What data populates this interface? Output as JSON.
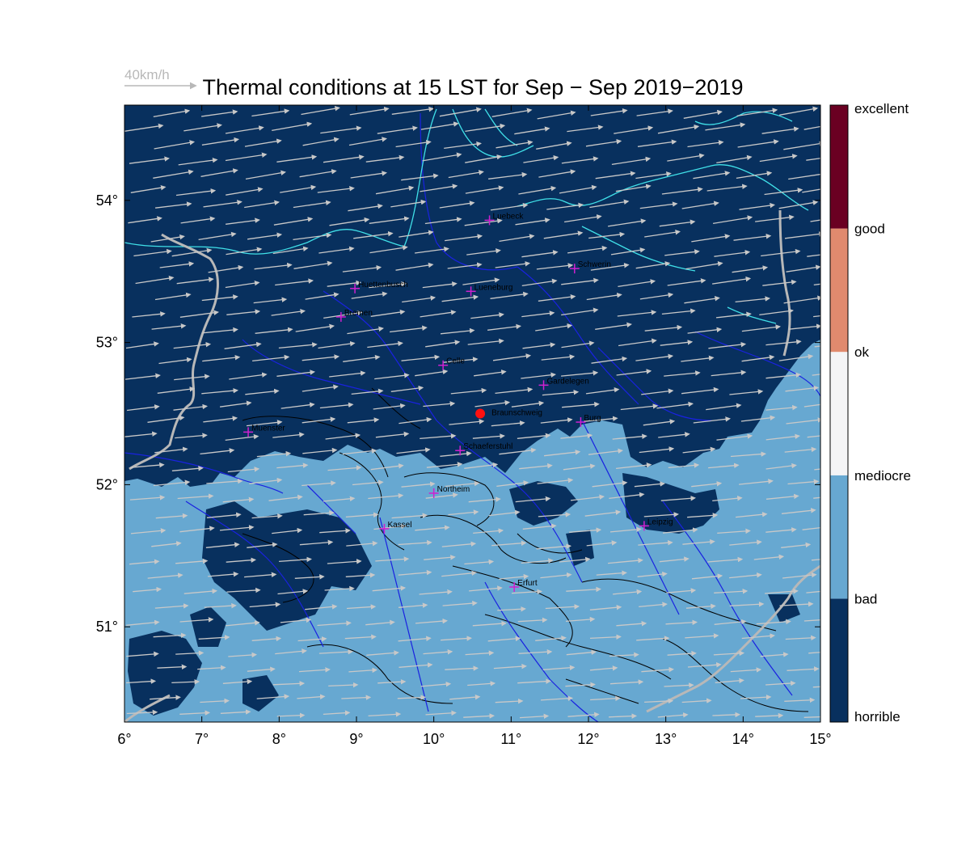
{
  "title": "Thermal conditions at 15 LST for Sep − Sep  2019−2019",
  "wind_reference": {
    "label": "40km/h"
  },
  "axes": {
    "x_ticks": [
      "6°",
      "7°",
      "8°",
      "9°",
      "10°",
      "11°",
      "12°",
      "13°",
      "14°",
      "15°"
    ],
    "y_ticks": [
      "51°",
      "52°",
      "53°",
      "54°"
    ]
  },
  "lon_range": [
    6,
    15
  ],
  "lat_range": [
    50.33,
    54.67
  ],
  "colorbar": {
    "classes": [
      {
        "label": "horrible",
        "color": "#08305e"
      },
      {
        "label": "bad",
        "color": "#67a8d1"
      },
      {
        "label": "mediocre",
        "color": "#f4f4f6"
      },
      {
        "label": "ok",
        "color": "#e18a6e"
      },
      {
        "label": "good",
        "color": "#6a0022"
      }
    ],
    "boundary_labels": [
      "horrible",
      "bad",
      "mediocre",
      "ok",
      "good",
      "excellent"
    ]
  },
  "colors": {
    "horrible": "#08305e",
    "bad": "#67a8d1",
    "coast": "#40e0e8",
    "river": "#1a22e0",
    "border": "#b8b8b8",
    "wind_arrow": "#c8c8c8",
    "city_marker": "#d020d0",
    "home_marker": "#ff1010",
    "terrain_contour": "#000000"
  },
  "home_site": {
    "name": "Braunschweig",
    "lon": 10.6,
    "lat": 52.5
  },
  "cities": [
    {
      "name": "Luebeck",
      "lon": 10.72,
      "lat": 53.86
    },
    {
      "name": "Schwerin",
      "lon": 11.82,
      "lat": 53.52
    },
    {
      "name": "Huettenbusch",
      "lon": 8.98,
      "lat": 53.38
    },
    {
      "name": "Lueneburg",
      "lon": 10.48,
      "lat": 53.36
    },
    {
      "name": "Bremen",
      "lon": 8.8,
      "lat": 53.18
    },
    {
      "name": "Celle",
      "lon": 10.12,
      "lat": 52.84
    },
    {
      "name": "Gardelegen",
      "lon": 11.42,
      "lat": 52.7
    },
    {
      "name": "Burg",
      "lon": 11.9,
      "lat": 52.44
    },
    {
      "name": "Muenster",
      "lon": 7.6,
      "lat": 52.37
    },
    {
      "name": "Schaeferstuhl",
      "lon": 10.34,
      "lat": 52.24
    },
    {
      "name": "Northeim",
      "lon": 10.0,
      "lat": 51.94
    },
    {
      "name": "Kassel",
      "lon": 9.36,
      "lat": 51.69
    },
    {
      "name": "Leipzig",
      "lon": 12.72,
      "lat": 51.71
    },
    {
      "name": "Erfurt",
      "lon": 11.04,
      "lat": 51.28
    }
  ]
}
